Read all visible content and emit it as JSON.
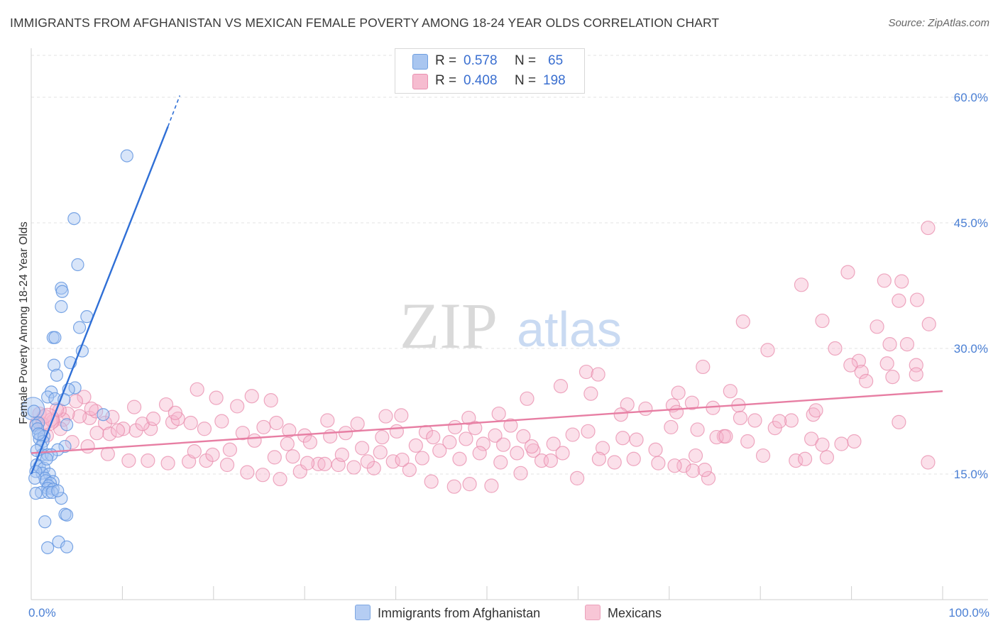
{
  "title": "IMMIGRANTS FROM AFGHANISTAN VS MEXICAN FEMALE POVERTY AMONG 18-24 YEAR OLDS CORRELATION CHART",
  "source": "Source: ZipAtlas.com",
  "watermark": {
    "zip": "ZIP",
    "atlas": "atlas"
  },
  "legend": {
    "r_label": "R =",
    "n_label": "N =",
    "series": [
      {
        "r": "0.578",
        "n": "65",
        "color": "#a9c6f0",
        "border": "#6f9fe0"
      },
      {
        "r": "0.408",
        "n": "198",
        "color": "#f6bcd0",
        "border": "#e990b0"
      }
    ]
  },
  "bottom_legend": [
    {
      "label": "Immigrants from Afghanistan",
      "color": "#b5cdf3",
      "border": "#7ea7e2"
    },
    {
      "label": "Mexicans",
      "color": "#f8c6d6",
      "border": "#eba1bb"
    }
  ],
  "chart_data": {
    "type": "scatter",
    "title": "IMMIGRANTS FROM AFGHANISTAN VS MEXICAN FEMALE POVERTY AMONG 18-24 YEAR OLDS CORRELATION CHART",
    "xlabel": "",
    "ylabel": "Female Poverty Among 18-24 Year Olds",
    "xlim": [
      0,
      100
    ],
    "ylim": [
      0,
      65
    ],
    "x_tick_labels": [
      "0.0%",
      "100.0%"
    ],
    "y_ticks": [
      15,
      30,
      45,
      60
    ],
    "y_tick_labels": [
      "15.0%",
      "30.0%",
      "45.0%",
      "60.0%"
    ],
    "grid": true,
    "legend_position": "top-center",
    "series": [
      {
        "name": "Immigrants from Afghanistan",
        "color": "#5b8fde",
        "trend": {
          "x": [
            0,
            15
          ],
          "y": [
            15.0,
            56.5
          ],
          "dashed_x_end": 16.3,
          "dashed_y_end": 60.2
        },
        "points": [
          [
            10.5,
            53.0
          ],
          [
            4.7,
            45.5
          ],
          [
            5.1,
            40.0
          ],
          [
            3.3,
            37.2
          ],
          [
            3.4,
            36.8
          ],
          [
            3.3,
            35.0
          ],
          [
            6.1,
            33.8
          ],
          [
            5.3,
            32.5
          ],
          [
            2.4,
            31.3
          ],
          [
            2.6,
            31.3
          ],
          [
            5.6,
            29.7
          ],
          [
            4.3,
            28.3
          ],
          [
            2.5,
            28.0
          ],
          [
            2.8,
            26.8
          ],
          [
            4.8,
            25.3
          ],
          [
            4.1,
            25.1
          ],
          [
            2.2,
            24.8
          ],
          [
            1.8,
            24.2
          ],
          [
            2.6,
            24.0
          ],
          [
            3.6,
            23.9
          ],
          [
            0.3,
            22.5
          ],
          [
            7.9,
            22.1
          ],
          [
            0.8,
            21.1
          ],
          [
            0.5,
            20.8
          ],
          [
            0.7,
            20.4
          ],
          [
            3.9,
            20.9
          ],
          [
            1.0,
            19.7
          ],
          [
            0.9,
            19.2
          ],
          [
            1.4,
            19.5
          ],
          [
            1.3,
            18.9
          ],
          [
            1.1,
            18.3
          ],
          [
            3.7,
            18.3
          ],
          [
            1.2,
            17.3
          ],
          [
            1.8,
            17.3
          ],
          [
            2.9,
            17.9
          ],
          [
            2.2,
            17.3
          ],
          [
            0.6,
            16.1
          ],
          [
            0.9,
            15.9
          ],
          [
            1.4,
            15.7
          ],
          [
            1.2,
            15.1
          ],
          [
            0.5,
            15.3
          ],
          [
            2.0,
            15.0
          ],
          [
            1.5,
            14.5
          ],
          [
            1.6,
            14.2
          ],
          [
            2.4,
            14.1
          ],
          [
            2.1,
            13.9
          ],
          [
            1.9,
            13.6
          ],
          [
            1.8,
            13.3
          ],
          [
            2.4,
            13.2
          ],
          [
            1.1,
            12.8
          ],
          [
            1.9,
            12.8
          ],
          [
            2.3,
            12.8
          ],
          [
            3.3,
            12.1
          ],
          [
            0.5,
            12.7
          ],
          [
            3.7,
            10.2
          ],
          [
            3.9,
            10.1
          ],
          [
            1.5,
            9.3
          ],
          [
            3.0,
            6.9
          ],
          [
            1.8,
            6.2
          ],
          [
            3.9,
            6.3
          ],
          [
            0.4,
            14.5
          ],
          [
            0.6,
            17.8
          ],
          [
            1.7,
            16.8
          ],
          [
            2.9,
            13.0
          ],
          [
            0.8,
            19.8
          ]
        ]
      },
      {
        "name": "Mexicans",
        "color": "#e77ea3",
        "trend": {
          "x": [
            0,
            100
          ],
          "y": [
            17.5,
            24.9
          ]
        },
        "points": [
          [
            98.4,
            44.4
          ],
          [
            89.6,
            39.1
          ],
          [
            93.6,
            38.1
          ],
          [
            95.5,
            38.0
          ],
          [
            84.5,
            37.6
          ],
          [
            97.2,
            35.8
          ],
          [
            95.2,
            35.7
          ],
          [
            78.1,
            33.2
          ],
          [
            86.8,
            33.3
          ],
          [
            92.8,
            32.6
          ],
          [
            98.5,
            32.9
          ],
          [
            96.1,
            30.5
          ],
          [
            94.2,
            30.5
          ],
          [
            88.2,
            30.0
          ],
          [
            80.8,
            29.8
          ],
          [
            90.8,
            28.5
          ],
          [
            93.9,
            28.2
          ],
          [
            89.9,
            28.0
          ],
          [
            97.1,
            28.0
          ],
          [
            73.7,
            27.8
          ],
          [
            91.1,
            27.2
          ],
          [
            97.1,
            26.9
          ],
          [
            94.5,
            26.6
          ],
          [
            91.6,
            26.1
          ],
          [
            76.7,
            24.9
          ],
          [
            71.0,
            24.7
          ],
          [
            70.4,
            23.2
          ],
          [
            65.4,
            23.3
          ],
          [
            77.6,
            23.2
          ],
          [
            85.8,
            22.1
          ],
          [
            74.8,
            22.9
          ],
          [
            72.5,
            23.5
          ],
          [
            77.8,
            21.7
          ],
          [
            64.7,
            22.1
          ],
          [
            67.4,
            22.8
          ],
          [
            70.8,
            22.4
          ],
          [
            95.2,
            21.2
          ],
          [
            73.1,
            20.3
          ],
          [
            76.0,
            19.5
          ],
          [
            85.6,
            19.2
          ],
          [
            86.8,
            18.5
          ],
          [
            80.3,
            17.2
          ],
          [
            83.9,
            16.6
          ],
          [
            71.6,
            16.0
          ],
          [
            72.6,
            15.4
          ],
          [
            74.3,
            14.5
          ],
          [
            98.4,
            16.4
          ],
          [
            60.9,
            27.2
          ],
          [
            62.2,
            26.9
          ],
          [
            58.1,
            25.5
          ],
          [
            61.4,
            24.6
          ],
          [
            54.4,
            24.0
          ],
          [
            51.3,
            22.2
          ],
          [
            52.6,
            20.8
          ],
          [
            54.0,
            19.5
          ],
          [
            50.9,
            19.6
          ],
          [
            48.0,
            21.7
          ],
          [
            48.7,
            20.5
          ],
          [
            46.5,
            20.6
          ],
          [
            43.3,
            20.0
          ],
          [
            40.6,
            22.0
          ],
          [
            38.9,
            21.9
          ],
          [
            35.8,
            21.0
          ],
          [
            32.5,
            21.4
          ],
          [
            30.0,
            19.6
          ],
          [
            28.3,
            20.2
          ],
          [
            26.9,
            21.1
          ],
          [
            25.5,
            20.6
          ],
          [
            23.2,
            19.9
          ],
          [
            20.9,
            21.3
          ],
          [
            19.0,
            20.4
          ],
          [
            17.5,
            21.1
          ],
          [
            15.5,
            21.2
          ],
          [
            13.1,
            20.4
          ],
          [
            11.5,
            20.2
          ],
          [
            10.1,
            20.4
          ],
          [
            8.1,
            21.1
          ],
          [
            7.2,
            19.9
          ],
          [
            6.4,
            21.7
          ],
          [
            5.3,
            21.9
          ],
          [
            4.0,
            22.2
          ],
          [
            3.5,
            21.5
          ],
          [
            2.4,
            21.3
          ],
          [
            1.2,
            21.0
          ],
          [
            0.9,
            22.2
          ],
          [
            1.7,
            19.6
          ],
          [
            2.2,
            21.5
          ],
          [
            3.1,
            22.6
          ],
          [
            5.8,
            24.2
          ],
          [
            7.1,
            22.5
          ],
          [
            8.6,
            19.8
          ],
          [
            9.5,
            20.2
          ],
          [
            12.2,
            21.0
          ],
          [
            14.8,
            23.3
          ],
          [
            16.1,
            21.6
          ],
          [
            18.2,
            25.1
          ],
          [
            20.3,
            24.1
          ],
          [
            22.6,
            23.1
          ],
          [
            24.2,
            24.3
          ],
          [
            26.3,
            23.8
          ],
          [
            28.1,
            18.6
          ],
          [
            30.6,
            18.8
          ],
          [
            32.8,
            19.5
          ],
          [
            34.5,
            19.9
          ],
          [
            36.3,
            18.1
          ],
          [
            38.5,
            19.4
          ],
          [
            40.1,
            20.1
          ],
          [
            42.2,
            18.4
          ],
          [
            44.1,
            19.4
          ],
          [
            45.9,
            18.8
          ],
          [
            47.7,
            19.2
          ],
          [
            49.6,
            18.6
          ],
          [
            51.5,
            16.4
          ],
          [
            53.3,
            17.5
          ],
          [
            55.1,
            17.8
          ],
          [
            57.3,
            18.6
          ],
          [
            59.4,
            19.7
          ],
          [
            61.1,
            20.1
          ],
          [
            62.7,
            18.1
          ],
          [
            64.9,
            19.3
          ],
          [
            66.4,
            19.1
          ],
          [
            68.5,
            17.9
          ],
          [
            70.2,
            20.6
          ],
          [
            72.9,
            17.2
          ],
          [
            75.2,
            19.4
          ],
          [
            78.6,
            18.9
          ],
          [
            81.6,
            20.5
          ],
          [
            83.4,
            21.4
          ],
          [
            86.1,
            22.6
          ],
          [
            88.9,
            18.6
          ],
          [
            58.3,
            17.5
          ],
          [
            56.0,
            16.6
          ],
          [
            53.7,
            15.1
          ],
          [
            50.5,
            13.6
          ],
          [
            48.1,
            13.8
          ],
          [
            46.4,
            13.5
          ],
          [
            43.9,
            14.1
          ],
          [
            41.5,
            15.5
          ],
          [
            39.7,
            16.5
          ],
          [
            37.6,
            15.7
          ],
          [
            35.4,
            15.8
          ],
          [
            33.7,
            16.1
          ],
          [
            31.5,
            16.2
          ],
          [
            29.5,
            15.3
          ],
          [
            27.3,
            14.4
          ],
          [
            25.4,
            14.9
          ],
          [
            23.7,
            15.2
          ],
          [
            21.5,
            16.1
          ],
          [
            19.2,
            16.6
          ],
          [
            17.3,
            16.5
          ],
          [
            15.0,
            16.3
          ],
          [
            12.8,
            16.6
          ],
          [
            10.7,
            16.6
          ],
          [
            8.4,
            17.4
          ],
          [
            6.2,
            18.3
          ],
          [
            4.5,
            18.8
          ],
          [
            3.2,
            20.4
          ],
          [
            1.5,
            21.9
          ],
          [
            0.6,
            21.0
          ],
          [
            2.8,
            22.7
          ],
          [
            4.9,
            23.7
          ],
          [
            6.6,
            22.8
          ],
          [
            8.9,
            21.8
          ],
          [
            11.3,
            23.0
          ],
          [
            13.4,
            21.6
          ],
          [
            15.8,
            22.3
          ],
          [
            17.9,
            17.7
          ],
          [
            19.9,
            17.3
          ],
          [
            21.8,
            17.9
          ],
          [
            24.5,
            19.0
          ],
          [
            26.7,
            17.0
          ],
          [
            28.7,
            17.1
          ],
          [
            30.3,
            16.3
          ],
          [
            32.2,
            16.2
          ],
          [
            34.1,
            17.3
          ],
          [
            36.9,
            16.5
          ],
          [
            38.3,
            17.6
          ],
          [
            40.7,
            16.7
          ],
          [
            42.9,
            16.9
          ],
          [
            44.8,
            17.8
          ],
          [
            47.0,
            16.8
          ],
          [
            49.2,
            17.5
          ],
          [
            51.8,
            18.5
          ],
          [
            54.9,
            18.3
          ],
          [
            57.0,
            16.6
          ],
          [
            59.9,
            14.5
          ],
          [
            62.3,
            16.8
          ],
          [
            64.0,
            16.4
          ],
          [
            66.1,
            16.8
          ],
          [
            68.8,
            16.3
          ],
          [
            70.6,
            16.0
          ],
          [
            73.9,
            15.5
          ],
          [
            76.2,
            19.5
          ],
          [
            79.4,
            21.4
          ],
          [
            82.1,
            21.3
          ],
          [
            84.9,
            16.8
          ],
          [
            87.3,
            17.0
          ],
          [
            90.3,
            18.9
          ]
        ]
      }
    ]
  }
}
